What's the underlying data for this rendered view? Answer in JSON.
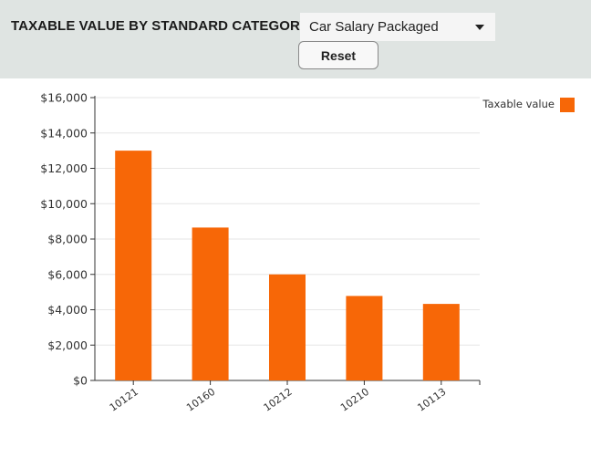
{
  "toolbar": {
    "title": "TAXABLE VALUE BY STANDARD CATEGORY",
    "select_value": "Car Salary Packaged",
    "reset_label": "Reset"
  },
  "colors": {
    "bar": "#f76707",
    "toolbar_bg": "#dfe4e2",
    "grid": "#e6e6e6",
    "axis": "#333333"
  },
  "chart_data": {
    "type": "bar",
    "categories": [
      "10121",
      "10160",
      "10212",
      "10210",
      "10113"
    ],
    "series": [
      {
        "name": "Taxable value",
        "values": [
          13000,
          8650,
          6000,
          4780,
          4330
        ]
      }
    ],
    "ylim": [
      0,
      16000
    ],
    "yticks": [
      0,
      2000,
      4000,
      6000,
      8000,
      10000,
      12000,
      14000,
      16000
    ],
    "ytick_labels": [
      "$0",
      "$2,000",
      "$4,000",
      "$6,000",
      "$8,000",
      "$10,000",
      "$12,000",
      "$14,000",
      "$16,000"
    ],
    "legend": {
      "position": "top-right",
      "label": "Taxable value"
    },
    "grid": true
  }
}
